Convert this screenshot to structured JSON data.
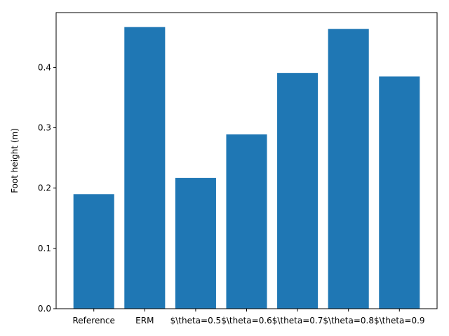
{
  "chart_data": {
    "type": "bar",
    "title": "",
    "xlabel": "",
    "ylabel": "Foot height (m)",
    "categories": [
      "Reference",
      "ERM",
      "$\\theta=0.5",
      "$\\theta=0.6",
      "$\\theta=0.7",
      "$\\theta=0.8",
      "$\\theta=0.9"
    ],
    "values": [
      0.19,
      0.467,
      0.217,
      0.289,
      0.391,
      0.464,
      0.385
    ],
    "ylim": [
      0,
      0.491
    ],
    "yticks": [
      0.0,
      0.1,
      0.2,
      0.3,
      0.4
    ],
    "ytick_labels": [
      "0.0",
      "0.1",
      "0.2",
      "0.3",
      "0.4"
    ],
    "grid": false,
    "legend": "none",
    "colors": {
      "bar": "#1f77b4",
      "axis": "#000000",
      "background": "#ffffff"
    }
  }
}
